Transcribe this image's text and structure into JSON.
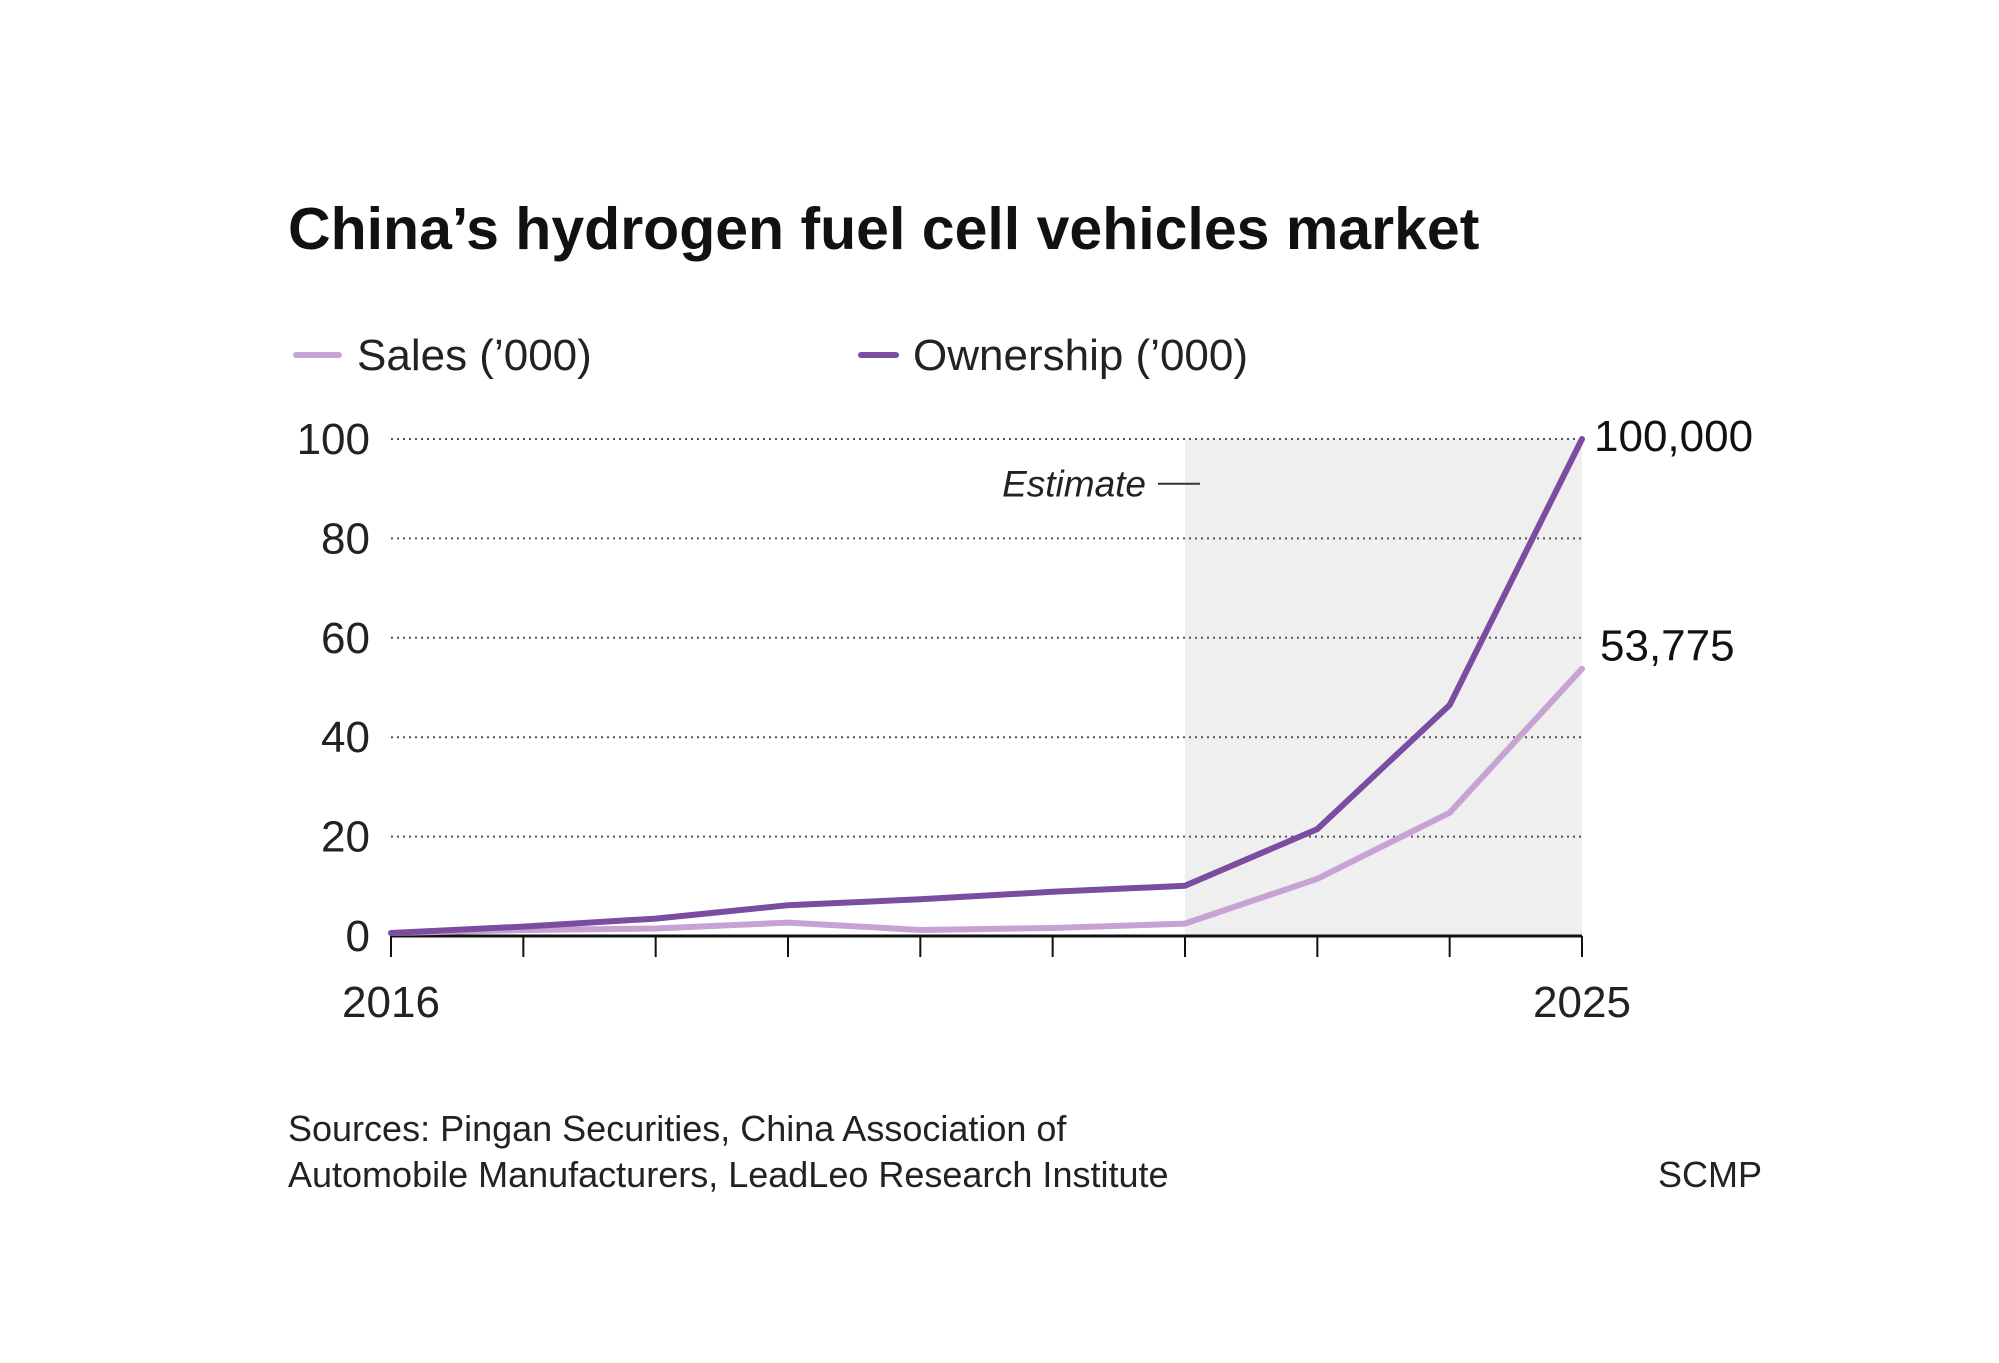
{
  "chart_data": {
    "type": "line",
    "title": "China’s hydrogen fuel cell vehicles market",
    "xlabel": "",
    "ylabel": "",
    "x": [
      2016,
      2017,
      2018,
      2019,
      2020,
      2021,
      2022,
      2023,
      2024,
      2025
    ],
    "x_tick_labels": [
      "2016",
      "2025"
    ],
    "ylim": [
      0,
      100
    ],
    "y_ticks": [
      0,
      20,
      40,
      60,
      80,
      100
    ],
    "y_tick_labels": [
      "0",
      "20",
      "40",
      "60",
      "80",
      "100"
    ],
    "grid": "horizontal dotted",
    "legend_position": "top-left",
    "series": [
      {
        "name": "Sales (’000)",
        "color": "#c7a2d4",
        "values": [
          0.6,
          1.2,
          1.5,
          2.7,
          1.2,
          1.6,
          2.5,
          11.5,
          24.8,
          53.775
        ],
        "end_label": "53,775"
      },
      {
        "name": "Ownership (’000)",
        "color": "#7b4da0",
        "values": [
          0.6,
          1.9,
          3.5,
          6.2,
          7.4,
          8.9,
          10.1,
          21.5,
          46.5,
          100
        ],
        "end_label": "100,000"
      }
    ],
    "estimate_region": {
      "from": 2022,
      "to": 2025,
      "label": "Estimate",
      "color": "#efefef"
    },
    "annotations": [
      "Estimate"
    ]
  },
  "footer": {
    "source_line1": "Sources: Pingan Securities, China Association of",
    "source_line2": "Automobile Manufacturers, LeadLeo Research Institute",
    "credit": "SCMP"
  }
}
